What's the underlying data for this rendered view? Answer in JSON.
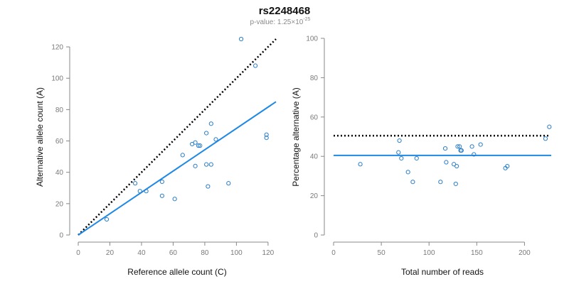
{
  "title": "rs2248468",
  "subtitle": {
    "prefix": "p-value: 1.25×10",
    "exponent": "-25"
  },
  "colors": {
    "points": "#2a7fc9",
    "fit": "#1e88e5",
    "reference": "#000000",
    "axis": "#888888",
    "tick_text": "#7a7a7a"
  },
  "chart_data": [
    {
      "type": "scatter",
      "xlabel": "Reference allele count (C)",
      "ylabel": "Alternative allele count (A)",
      "xlim": [
        0,
        125
      ],
      "ylim": [
        0,
        125
      ],
      "xticks": [
        0,
        20,
        40,
        60,
        80,
        100,
        120
      ],
      "yticks": [
        0,
        20,
        40,
        60,
        80,
        100,
        120
      ],
      "points": [
        [
          18,
          10
        ],
        [
          36,
          33
        ],
        [
          39,
          28
        ],
        [
          43,
          28
        ],
        [
          53,
          34
        ],
        [
          53,
          25
        ],
        [
          61,
          23
        ],
        [
          66,
          51
        ],
        [
          72,
          58
        ],
        [
          74,
          59
        ],
        [
          74,
          44
        ],
        [
          76,
          57
        ],
        [
          77,
          57
        ],
        [
          81,
          65
        ],
        [
          81,
          45
        ],
        [
          82,
          31
        ],
        [
          84,
          71
        ],
        [
          84,
          45
        ],
        [
          87,
          61
        ],
        [
          95,
          33
        ],
        [
          103,
          125
        ],
        [
          112,
          108
        ],
        [
          119,
          64
        ],
        [
          119,
          62
        ]
      ],
      "reference_line": [
        [
          0,
          0
        ],
        [
          125,
          125
        ]
      ],
      "fit_line": [
        [
          0,
          0
        ],
        [
          125,
          85
        ]
      ]
    },
    {
      "type": "scatter",
      "xlabel": "Total number of reads",
      "ylabel": "Percentage alternative (A)",
      "xlim": [
        0,
        228
      ],
      "ylim": [
        0,
        100
      ],
      "xticks": [
        0,
        50,
        100,
        150,
        200
      ],
      "yticks": [
        0,
        20,
        40,
        60,
        80,
        100
      ],
      "points": [
        [
          28,
          36
        ],
        [
          68,
          42
        ],
        [
          69,
          48
        ],
        [
          71,
          39
        ],
        [
          78,
          32
        ],
        [
          83,
          27
        ],
        [
          87,
          39
        ],
        [
          112,
          27
        ],
        [
          117,
          44
        ],
        [
          118,
          37
        ],
        [
          126,
          36
        ],
        [
          128,
          26
        ],
        [
          129,
          35
        ],
        [
          130,
          45
        ],
        [
          132,
          45
        ],
        [
          133,
          43
        ],
        [
          134,
          43
        ],
        [
          145,
          45
        ],
        [
          147,
          41
        ],
        [
          154,
          46
        ],
        [
          180,
          34
        ],
        [
          182,
          35
        ],
        [
          222,
          49
        ],
        [
          226,
          55
        ]
      ],
      "reference_line": [
        [
          0,
          50.5
        ],
        [
          225,
          50.5
        ]
      ],
      "fit_line": [
        [
          0,
          40.5
        ],
        [
          228,
          40.5
        ]
      ]
    }
  ]
}
